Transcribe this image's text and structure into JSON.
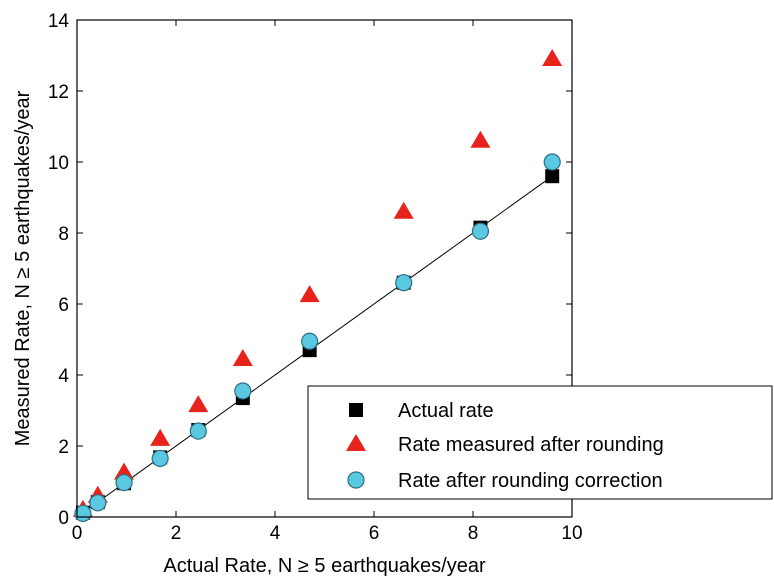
{
  "chart_data": {
    "type": "scatter",
    "title": "",
    "xlabel": "Actual Rate, N ≥ 5 earthquakes/year",
    "ylabel": "Measured Rate, N ≥ 5 earthquakes/year",
    "xlim": [
      0,
      10
    ],
    "ylim": [
      0,
      14
    ],
    "x_ticks": [
      0,
      2,
      4,
      6,
      8,
      10
    ],
    "y_ticks": [
      0,
      2,
      4,
      6,
      8,
      10,
      12,
      14
    ],
    "grid": false,
    "legend_position": "bottom-right",
    "reference_line": {
      "x": [
        0,
        9.6
      ],
      "y": [
        0,
        9.6
      ],
      "color": "#000000"
    },
    "series": [
      {
        "name": "Actual rate",
        "marker": "square",
        "color": "#000000",
        "x": [
          0.12,
          0.42,
          0.95,
          1.68,
          2.45,
          3.35,
          4.7,
          6.6,
          8.15,
          9.6
        ],
        "y": [
          0.12,
          0.42,
          0.95,
          1.68,
          2.45,
          3.35,
          4.7,
          6.6,
          8.15,
          9.6
        ]
      },
      {
        "name": "Rate measured after rounding",
        "marker": "triangle",
        "color": "#e8231c",
        "x": [
          0.12,
          0.42,
          0.95,
          1.68,
          2.45,
          3.35,
          4.7,
          6.6,
          8.15,
          9.6
        ],
        "y": [
          0.2,
          0.6,
          1.25,
          2.2,
          3.15,
          4.45,
          6.25,
          8.6,
          10.6,
          12.9
        ]
      },
      {
        "name": "Rate after rounding correction",
        "marker": "circle",
        "color": "#5bc8e2",
        "x": [
          0.12,
          0.42,
          0.95,
          1.68,
          2.45,
          3.35,
          4.7,
          6.6,
          8.15,
          9.6
        ],
        "y": [
          0.1,
          0.4,
          0.97,
          1.65,
          2.42,
          3.55,
          4.95,
          6.6,
          8.05,
          10.0
        ]
      }
    ]
  }
}
